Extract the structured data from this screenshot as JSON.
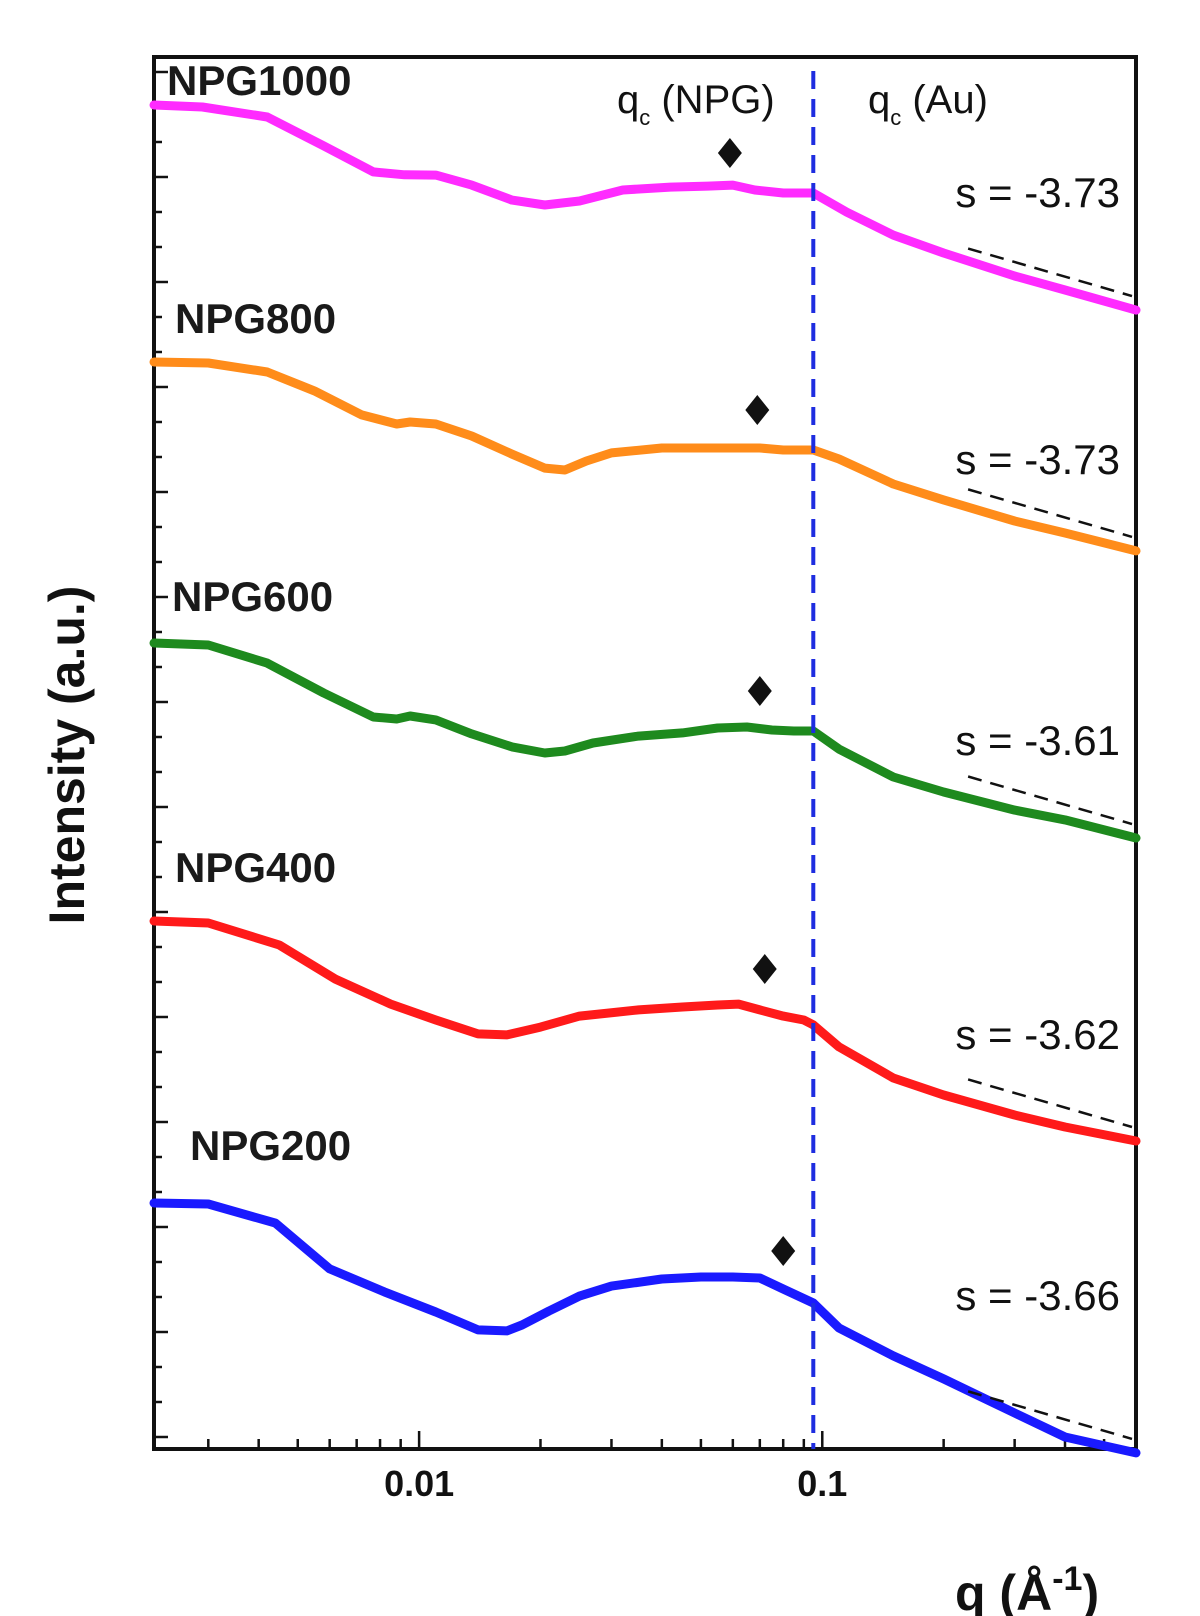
{
  "chart_data": {
    "type": "line",
    "title": "",
    "xlabel": "q (Å",
    "xlabel_exponent": "-1",
    "xlabel_close": ")",
    "ylabel": "Intensity (a.u.)",
    "xscale": "log",
    "xlim": [
      0.0022,
      0.6
    ],
    "yscale": "log",
    "yticks_labeled": false,
    "xtick_labels": [
      {
        "value": 0.01,
        "label": "0.01"
      },
      {
        "value": 0.1,
        "label": "0.1"
      }
    ],
    "vline": {
      "x": 0.095,
      "style": "dashed",
      "color": "#1e2de0"
    },
    "qc_labels": {
      "npg_main": "q",
      "npg_sub": "c",
      "npg_rest": " (NPG)",
      "au_main": "q",
      "au_sub": "c",
      "au_rest": " (Au)"
    },
    "series": [
      {
        "name": "NPG1000",
        "color": "#ff2bff",
        "slope_label": "s = -3.73",
        "diamond_q": 0.059,
        "x": [
          0.0022,
          0.0029,
          0.0042,
          0.0058,
          0.0077,
          0.0092,
          0.011,
          0.0135,
          0.017,
          0.0205,
          0.025,
          0.032,
          0.042,
          0.052,
          0.06,
          0.068,
          0.08,
          0.095,
          0.115,
          0.15,
          0.2,
          0.3,
          0.4,
          0.6
        ],
        "y": [
          0,
          0.8,
          4.9,
          16.7,
          27.3,
          28.5,
          28.6,
          32.7,
          38.8,
          40.8,
          39.2,
          34.7,
          33.5,
          33.1,
          32.7,
          34.7,
          35.9,
          35.9,
          43.7,
          53.1,
          60.4,
          69.8,
          75.5,
          83.7
        ]
      },
      {
        "name": "NPG800",
        "color": "#ff8c1a",
        "slope_label": "s = -3.73",
        "diamond_q": 0.069,
        "x": [
          0.0022,
          0.003,
          0.0042,
          0.0055,
          0.0072,
          0.0088,
          0.0095,
          0.011,
          0.0135,
          0.017,
          0.0205,
          0.023,
          0.026,
          0.03,
          0.04,
          0.05,
          0.06,
          0.07,
          0.08,
          0.095,
          0.11,
          0.15,
          0.2,
          0.3,
          0.4,
          0.6
        ],
        "y": [
          0,
          0.4,
          4.1,
          11.8,
          21.6,
          25.3,
          24.5,
          25.3,
          30.2,
          37.6,
          43.3,
          44.1,
          40.4,
          37.1,
          35.1,
          35.1,
          35.1,
          35.1,
          35.9,
          35.9,
          39.6,
          49.8,
          56.3,
          64.9,
          69.8,
          77.1
        ]
      },
      {
        "name": "NPG600",
        "color": "#1e8a1e",
        "slope_label": "s = -3.61",
        "diamond_q": 0.07,
        "x": [
          0.0022,
          0.003,
          0.0042,
          0.0058,
          0.0077,
          0.0088,
          0.0095,
          0.011,
          0.0135,
          0.017,
          0.0205,
          0.023,
          0.027,
          0.035,
          0.045,
          0.055,
          0.065,
          0.075,
          0.085,
          0.095,
          0.11,
          0.15,
          0.2,
          0.3,
          0.4,
          0.6
        ],
        "y": [
          0,
          0.8,
          8.2,
          20.4,
          30.2,
          31.0,
          29.8,
          31.4,
          37.1,
          42.4,
          44.9,
          44.1,
          40.8,
          38.0,
          36.7,
          34.7,
          34.3,
          35.5,
          35.9,
          35.9,
          43.3,
          54.7,
          60.8,
          68.2,
          72.2,
          79.6
        ]
      },
      {
        "name": "NPG400",
        "color": "#ff1a1a",
        "slope_label": "s = -3.62",
        "diamond_q": 0.072,
        "x": [
          0.0022,
          0.003,
          0.0045,
          0.0062,
          0.0085,
          0.011,
          0.014,
          0.0165,
          0.02,
          0.025,
          0.035,
          0.045,
          0.055,
          0.062,
          0.07,
          0.08,
          0.09,
          0.095,
          0.11,
          0.15,
          0.2,
          0.3,
          0.4,
          0.6
        ],
        "y": [
          0,
          0.8,
          9.8,
          23.7,
          33.9,
          40.4,
          46.1,
          46.5,
          43.3,
          38.8,
          36.3,
          35.1,
          34.3,
          33.9,
          36.3,
          38.8,
          40.4,
          42.4,
          51.4,
          64.1,
          71.0,
          79.2,
          84.1,
          89.8
        ]
      },
      {
        "name": "NPG200",
        "color": "#1a1aff",
        "slope_label": "s = -3.66",
        "diamond_q": 0.08,
        "x": [
          0.0022,
          0.003,
          0.0044,
          0.006,
          0.0082,
          0.011,
          0.014,
          0.0165,
          0.018,
          0.021,
          0.025,
          0.03,
          0.04,
          0.05,
          0.06,
          0.07,
          0.08,
          0.095,
          0.11,
          0.15,
          0.2,
          0.3,
          0.4,
          0.6
        ],
        "y": [
          0,
          0.4,
          8.2,
          26.9,
          36.3,
          44.5,
          51.8,
          52.2,
          49.8,
          44.1,
          38.0,
          33.9,
          31.0,
          30.2,
          30.2,
          30.6,
          35.1,
          40.8,
          51.0,
          62.4,
          71.8,
          85.7,
          95.5,
          102.0
        ]
      }
    ]
  }
}
